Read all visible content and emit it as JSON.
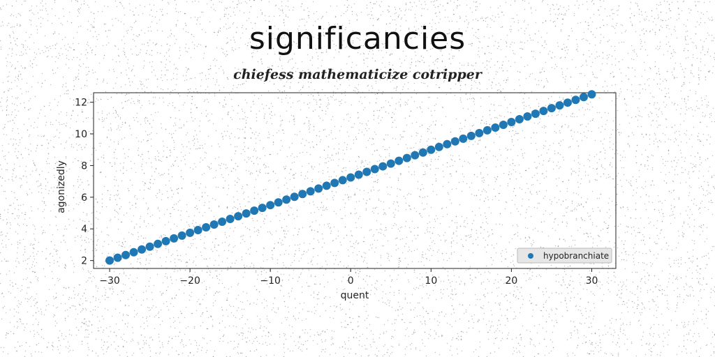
{
  "chart_data": {
    "type": "scatter",
    "title": "significancies",
    "subtitle": "chiefess mathematicize cotripper",
    "xlabel": "quent",
    "ylabel": "agonizedly",
    "xlim": [
      -32,
      33
    ],
    "ylim": [
      1.5,
      12.6
    ],
    "xticks": [
      -30,
      -20,
      -10,
      0,
      10,
      20,
      30
    ],
    "xtick_labels": [
      "−30",
      "−20",
      "−10",
      "0",
      "10",
      "20",
      "30"
    ],
    "yticks": [
      2,
      4,
      6,
      8,
      10,
      12
    ],
    "ytick_labels": [
      "2",
      "4",
      "6",
      "8",
      "10",
      "12"
    ],
    "legend_position": "bottom-right",
    "grid": false,
    "series": [
      {
        "name": "hypobranchiate",
        "color": "#1f77b4",
        "x_start": -30,
        "x_end": 30,
        "y_start": 2.0,
        "y_end": 12.5,
        "count": 61
      }
    ]
  }
}
